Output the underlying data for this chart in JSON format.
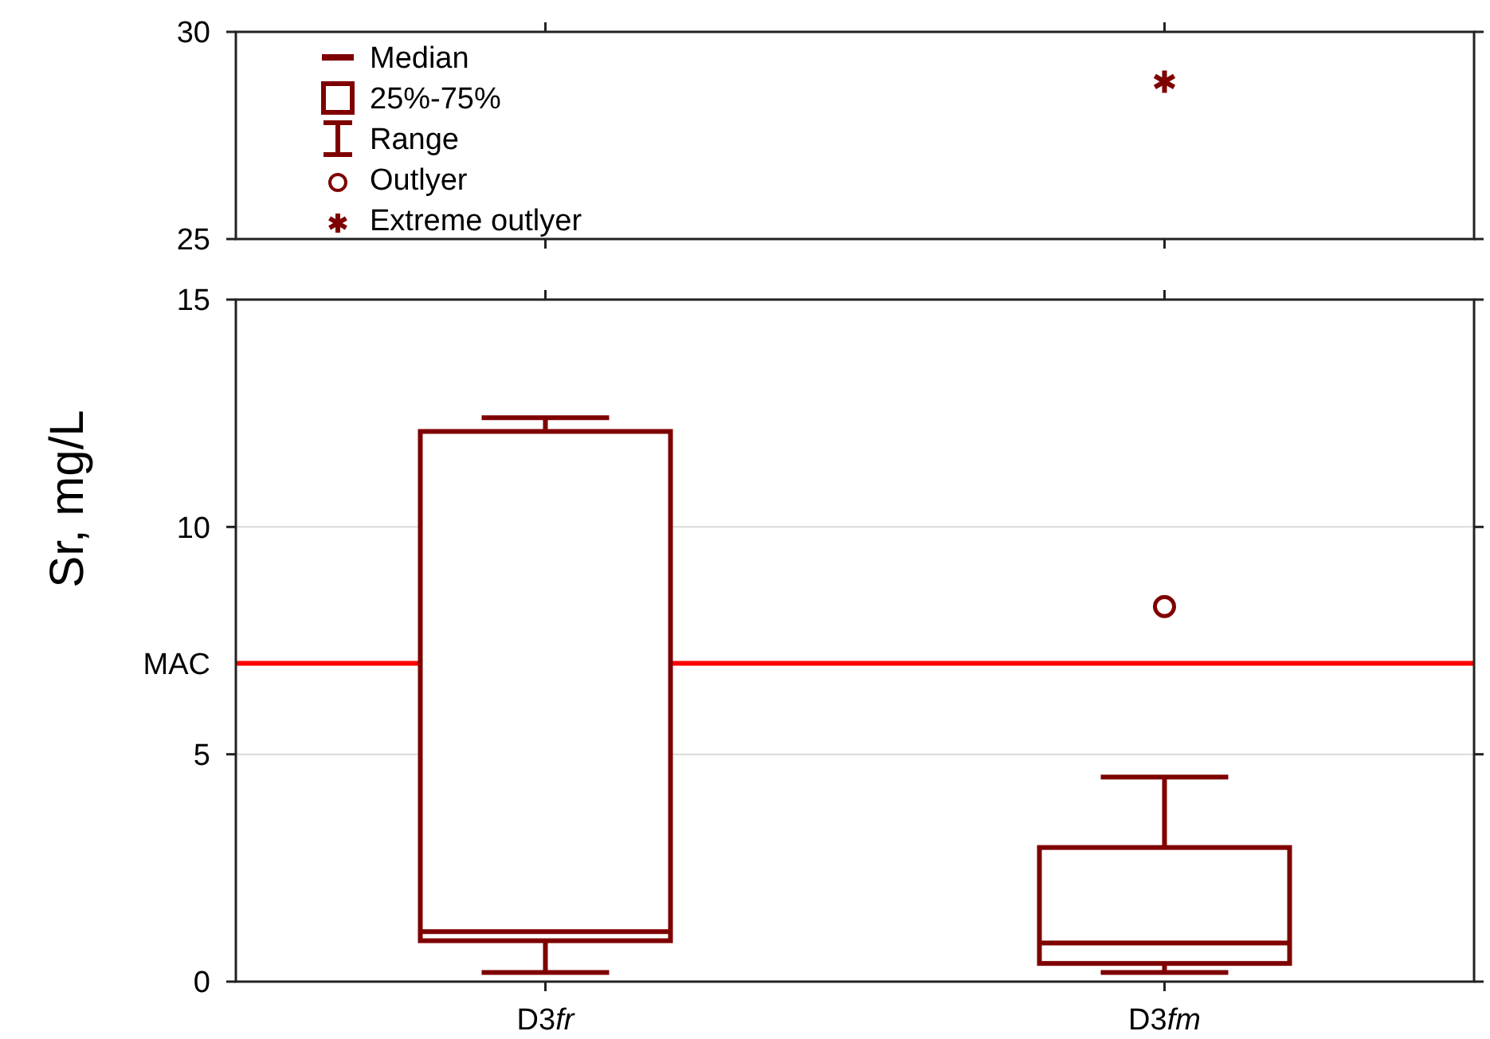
{
  "chart_data": [
    {
      "type": "scatter",
      "categories": [
        "D3fr",
        "D3fm"
      ],
      "ylim": [
        25,
        30
      ],
      "yticks": [
        25,
        30
      ],
      "tick_labels": "y",
      "legend": "left",
      "marker": "cross",
      "annotations": [
        "Median",
        "25%-75%",
        "Range",
        "Outlyer"
      ],
      "series": [
        {
          "name": "Extreme outlyer",
          "color": "#7f0000",
          "x": [
            "D3fm"
          ],
          "values": [
            28.8
          ]
        }
      ]
    },
    {
      "type": "box",
      "categories": [
        "D3fr",
        "D3fm"
      ],
      "ylim": [
        0,
        15
      ],
      "yticks": [
        0,
        5,
        10,
        15
      ],
      "grid": "y",
      "ylabel": "Sr, mg/L",
      "color": "#7f0000",
      "boxes": [
        {
          "low": 0.2,
          "q1": 0.9,
          "median": 1.1,
          "q3": 12.1,
          "high": 12.4
        },
        {
          "low": 0.2,
          "q1": 0.4,
          "median": 0.85,
          "q3": 2.95,
          "high": 4.5,
          "outliers": [
            8.25
          ]
        }
      ],
      "ref_lines": [
        {
          "axis": "y",
          "value": 7,
          "label": "MAC",
          "color": "#ff0000"
        }
      ]
    }
  ]
}
